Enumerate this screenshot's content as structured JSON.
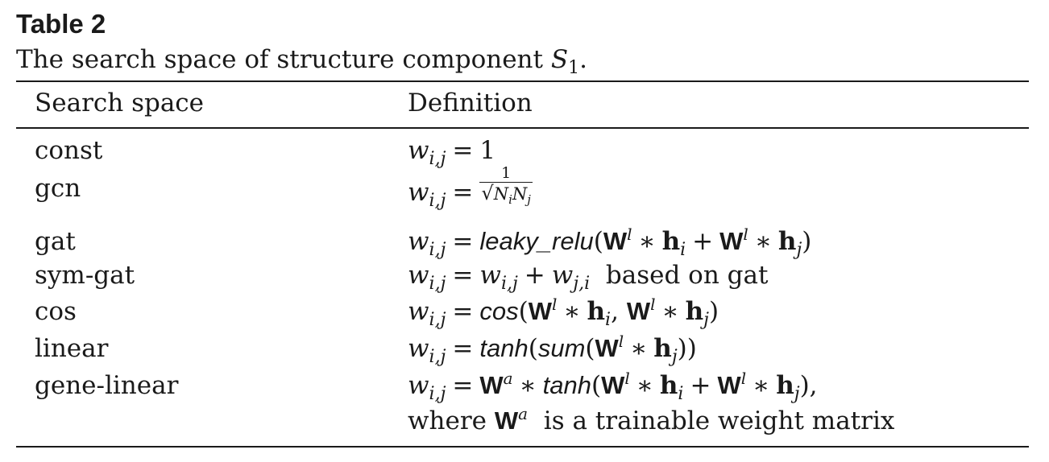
{
  "table": {
    "label": "Table 2",
    "caption_text": "The search space of structure component ",
    "caption_symbol": "S",
    "caption_symbol_sub": "1",
    "caption_end": ".",
    "headers": [
      "Search space",
      "Definition"
    ],
    "rows": [
      {
        "name": "const",
        "definition": "w_{i,j} = 1"
      },
      {
        "name": "gcn",
        "definition": "w_{i,j} = 1 / sqrt(N_i N_j)"
      },
      {
        "name": "gat",
        "definition": "w_{i,j} = leaky_relu(W^l * h_i + W^l * h_j)"
      },
      {
        "name": "sym-gat",
        "definition": "w_{i,j} = w_{i,j} + w_{j,i} based on gat",
        "definition_text": "based on gat"
      },
      {
        "name": "cos",
        "definition": "w_{i,j} = cos(W^l * h_i, W^l * h_j)"
      },
      {
        "name": "linear",
        "definition": "w_{i,j} = tanh(sum(W^l * h_j))"
      },
      {
        "name": "gene-linear",
        "definition": "w_{i,j} = W^a * tanh(W^l * h_i + W^l * h_j),",
        "definition_line2_prefix": "where",
        "definition_line2_suffix": "is a trainable weight matrix"
      }
    ],
    "functions": {
      "leaky_relu": "leaky_relu",
      "cos": "cos",
      "tanh": "tanh",
      "sum": "sum"
    }
  }
}
